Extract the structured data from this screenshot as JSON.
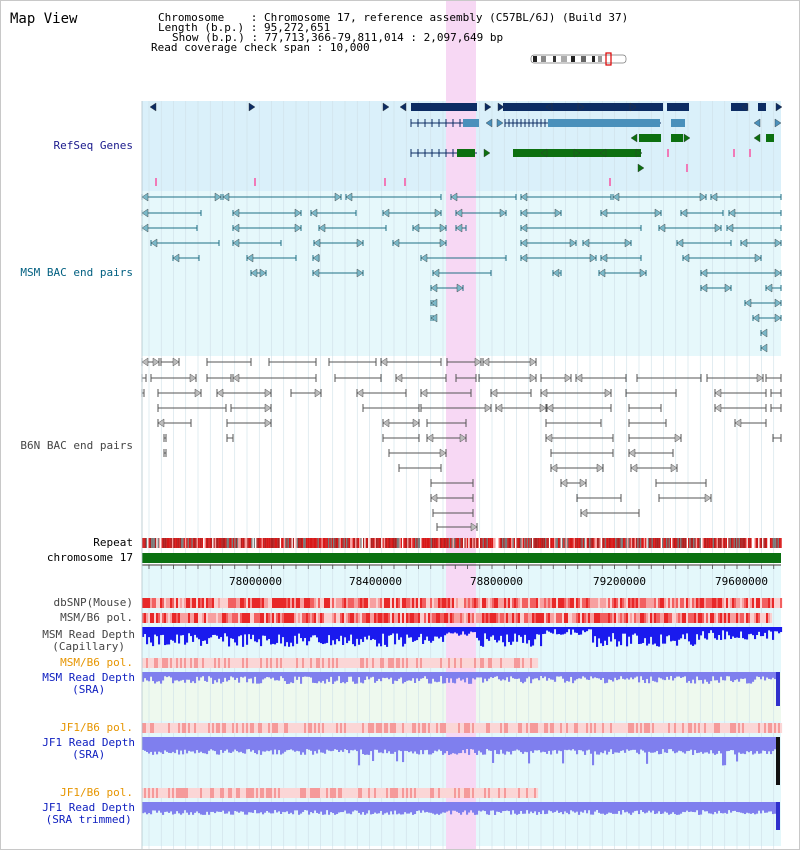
{
  "title": "Map View",
  "header": {
    "chromosome_label": "Chromosome",
    "chromosome_value": "Chromosome 17, reference assembly (C57BL/6J) (Build 37)",
    "length_label": "Length (b.p.)",
    "length_value": "95,272,651",
    "show_label": "Show (b.p.)",
    "show_value": "77,713,366-79,811,014 : 2,097,649 bp",
    "coverage_label": "Read coverage check span",
    "coverage_value": "10,000"
  },
  "tracks": {
    "refseq": "RefSeq Genes",
    "msm_bac": "MSM BAC end pairs",
    "b6n_bac": "B6N BAC end pairs",
    "repeat": "Repeat",
    "chromosome": "chromosome 17",
    "dbsnp": "dbSNP(Mouse)",
    "msm_b6_pol_1": "MSM/B6 pol.",
    "msm_read_depth_cap_1": "MSM Read Depth",
    "msm_read_depth_cap_2": "(Capillary)",
    "msm_b6_pol_2": "MSM/B6 pol.",
    "msm_read_depth_sra_1": "MSM Read Depth",
    "msm_read_depth_sra_2": "(SRA)",
    "jf1_b6_pol_1": "JF1/B6 pol.",
    "jf1_read_depth_sra_1": "JF1 Read Depth",
    "jf1_read_depth_sra_2": "(SRA)",
    "jf1_b6_pol_2": "JF1/B6 pol.",
    "jf1_read_depth_trim_1": "JF1 Read Depth",
    "jf1_read_depth_trim_2": "(SRA trimmed)"
  },
  "axis_ticks": [
    "78000000",
    "78400000",
    "78800000",
    "79200000",
    "79600000"
  ],
  "colors": {
    "refseq_bg": "#daf0fa",
    "gene_navy": "#0c2c63",
    "gene_steel": "#4a90bb",
    "gene_green": "#0c7010",
    "highlight": "#f7d8f4",
    "chromosome_bar": "#0a7010",
    "snp_red": "#e83030",
    "depth_blue": "#1a1aee",
    "depth_light": "#7f7fee"
  }
}
